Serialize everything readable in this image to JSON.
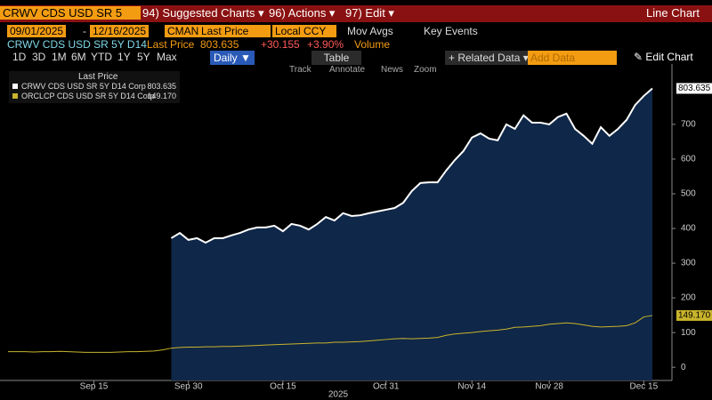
{
  "toolbar": {
    "security": "CRWV CDS USD SR 5",
    "menu1": "94) Suggested Charts ▾",
    "menu2": "96) Actions ▾",
    "menu3": "97) Edit ▾",
    "chart_type": "Line Chart"
  },
  "controls": {
    "start": "09/01/2025",
    "dash": "-",
    "end": "12/16/2025",
    "source": "CMAN",
    "field": "Last Price",
    "currency": "Local CCY",
    "mov_avgs": "Mov Avgs",
    "key_events": "Key Events"
  },
  "quote": {
    "name": "CRWV CDS USD SR 5Y D14",
    "field": "Last Price",
    "price": "803.635",
    "change": "+30.155",
    "pct": "+3.90%",
    "volume": "Volume"
  },
  "buttons": {
    "periods": [
      "1D",
      "3D",
      "1M",
      "6M",
      "YTD",
      "1Y",
      "5Y",
      "Max"
    ],
    "daily": "Daily ▼",
    "table": "Table",
    "related": "+ Related Data ▾",
    "add_data": "Add Data",
    "edit_chart": "✎ Edit Chart"
  },
  "tools": [
    "Track",
    "Annotate",
    "News",
    "Zoom"
  ],
  "chart_data": {
    "type": "line",
    "legend_title": "Last Price",
    "x_axis_label": "2025",
    "x": [
      "2025-09-01",
      "2025-09-02",
      "2025-09-03",
      "2025-09-04",
      "2025-09-05",
      "2025-09-08",
      "2025-09-09",
      "2025-09-10",
      "2025-09-11",
      "2025-09-12",
      "2025-09-15",
      "2025-09-16",
      "2025-09-17",
      "2025-09-18",
      "2025-09-19",
      "2025-09-22",
      "2025-09-23",
      "2025-09-24",
      "2025-09-25",
      "2025-09-26",
      "2025-09-29",
      "2025-09-30",
      "2025-10-01",
      "2025-10-02",
      "2025-10-03",
      "2025-10-06",
      "2025-10-07",
      "2025-10-08",
      "2025-10-09",
      "2025-10-10",
      "2025-10-13",
      "2025-10-14",
      "2025-10-15",
      "2025-10-16",
      "2025-10-17",
      "2025-10-20",
      "2025-10-21",
      "2025-10-22",
      "2025-10-23",
      "2025-10-24",
      "2025-10-27",
      "2025-10-28",
      "2025-10-29",
      "2025-10-30",
      "2025-10-31",
      "2025-11-03",
      "2025-11-04",
      "2025-11-05",
      "2025-11-06",
      "2025-11-07",
      "2025-11-10",
      "2025-11-11",
      "2025-11-12",
      "2025-11-13",
      "2025-11-14",
      "2025-11-17",
      "2025-11-18",
      "2025-11-19",
      "2025-11-20",
      "2025-11-21",
      "2025-11-24",
      "2025-11-25",
      "2025-11-26",
      "2025-11-28",
      "2025-12-01",
      "2025-12-02",
      "2025-12-03",
      "2025-12-04",
      "2025-12-05",
      "2025-12-08",
      "2025-12-09",
      "2025-12-10",
      "2025-12-11",
      "2025-12-12",
      "2025-12-15",
      "2025-12-16"
    ],
    "series": [
      {
        "name": "CRWV CDS USD SR 5Y D14 Corp",
        "color": "#ffffff",
        "fill": "#0f2748",
        "last_label": "803.635",
        "values": [
          null,
          null,
          null,
          null,
          null,
          null,
          null,
          null,
          null,
          null,
          null,
          null,
          null,
          null,
          null,
          null,
          null,
          null,
          null,
          372,
          387,
          367,
          372,
          359,
          372,
          372,
          380,
          387,
          397,
          403,
          403,
          408,
          392,
          413,
          408,
          397,
          413,
          433,
          423,
          444,
          436,
          438,
          444,
          449,
          454,
          459,
          474,
          508,
          531,
          533,
          533,
          567,
          597,
          623,
          662,
          674,
          659,
          654,
          700,
          687,
          726,
          705,
          705,
          700,
          721,
          731,
          687,
          667,
          644,
          692,
          667,
          687,
          713,
          756,
          782,
          803.635
        ]
      },
      {
        "name": "ORCLCP CDS USD SR 5Y D14 Corp",
        "color": "#c9b42c",
        "last_label": "149.170",
        "values": [
          45,
          45,
          45,
          44,
          45,
          45,
          46,
          45,
          44,
          43,
          43,
          43,
          43,
          44,
          45,
          45,
          46,
          47,
          50,
          55,
          57,
          58,
          58,
          59,
          59,
          60,
          60,
          61,
          62,
          63,
          64,
          65,
          66,
          67,
          68,
          69,
          70,
          70,
          72,
          72,
          73,
          74,
          76,
          78,
          80,
          82,
          83,
          82,
          83,
          84,
          86,
          92,
          96,
          98,
          100,
          103,
          105,
          107,
          110,
          115,
          116,
          118,
          120,
          124,
          126,
          128,
          126,
          122,
          118,
          116,
          117,
          118,
          120,
          128,
          145,
          149.17
        ]
      }
    ],
    "ylim": [
      -38,
      874
    ],
    "yticks": [
      0,
      100,
      200,
      300,
      400,
      500,
      600,
      700
    ],
    "xticks": [
      {
        "value": "2025-09-15",
        "label": "Sep 15"
      },
      {
        "value": "2025-09-30",
        "label": "Sep 30"
      },
      {
        "value": "2025-10-15",
        "label": "Oct 15"
      },
      {
        "value": "2025-10-31",
        "label": "Oct 31"
      },
      {
        "value": "2025-11-14",
        "label": "Nov 14"
      },
      {
        "value": "2025-11-28",
        "label": "Nov 28"
      },
      {
        "value": "2025-12-15",
        "label": "Dec 15"
      }
    ]
  }
}
